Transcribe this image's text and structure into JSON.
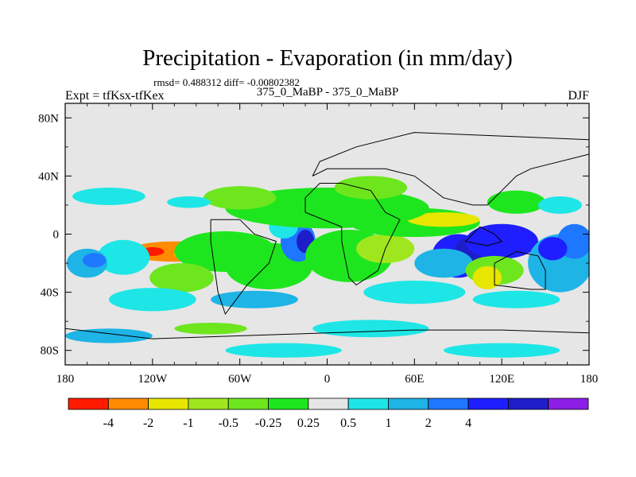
{
  "chart_data": {
    "type": "heatmap",
    "title": "Precipitation - Evaporation (in mm/day)",
    "stats_line": "rmsd= 0.488312 diff= -0.00802382",
    "experiment_label": "Expt = tfKsx-tfKex",
    "comparison_label": "375_0_MaBP - 375_0_MaBP",
    "season_label": "DJF",
    "x_axis": {
      "range": [
        -180,
        180
      ],
      "ticks": [
        {
          "value": -180,
          "label": "180"
        },
        {
          "value": -120,
          "label": "120W"
        },
        {
          "value": -60,
          "label": "60W"
        },
        {
          "value": 0,
          "label": "0"
        },
        {
          "value": 60,
          "label": "60E"
        },
        {
          "value": 120,
          "label": "120E"
        },
        {
          "value": 180,
          "label": "180"
        }
      ]
    },
    "y_axis": {
      "range": [
        -90,
        90
      ],
      "ticks": [
        {
          "value": 80,
          "label": "80N"
        },
        {
          "value": 40,
          "label": "40N"
        },
        {
          "value": 0,
          "label": "0"
        },
        {
          "value": -40,
          "label": "40S"
        },
        {
          "value": -80,
          "label": "80S"
        }
      ]
    },
    "colorbar": {
      "colors": [
        "#ff1a00",
        "#ff8c00",
        "#e6e600",
        "#a0e61e",
        "#6ee61e",
        "#1ee61e",
        "#e6e6e6",
        "#1ee6e6",
        "#1eb4e6",
        "#1e78ff",
        "#1e1eff",
        "#1e1ec8",
        "#8c1ee6"
      ],
      "labels": [
        "-4",
        "-2",
        "-1",
        "-0.5",
        "-0.25",
        "0.25",
        "0.5",
        "1",
        "2",
        "4"
      ]
    },
    "field_blobs": [
      {
        "lon": -105,
        "lat": -12,
        "rlon": 32,
        "rlat": 7,
        "level": 1
      },
      {
        "lon": -120,
        "lat": -12,
        "rlon": 8,
        "rlat": 3,
        "level": 0
      },
      {
        "lon": -85,
        "lat": -14,
        "rlon": 20,
        "rlat": 5,
        "level": 2
      },
      {
        "lon": -140,
        "lat": -16,
        "rlon": 18,
        "rlat": 12,
        "level": 7
      },
      {
        "lon": -165,
        "lat": -20,
        "rlon": 14,
        "rlat": 10,
        "level": 8
      },
      {
        "lon": -160,
        "lat": -18,
        "rlon": 8,
        "rlat": 5,
        "level": 9
      },
      {
        "lon": -70,
        "lat": -12,
        "rlon": 35,
        "rlat": 14,
        "level": 5
      },
      {
        "lon": -40,
        "lat": -22,
        "rlon": 30,
        "rlat": 16,
        "level": 5
      },
      {
        "lon": -100,
        "lat": -30,
        "rlon": 22,
        "rlat": 10,
        "level": 4
      },
      {
        "lon": -20,
        "lat": -5,
        "rlon": 12,
        "rlat": 14,
        "level": 9
      },
      {
        "lon": -15,
        "lat": -5,
        "rlon": 6,
        "rlat": 8,
        "level": 11
      },
      {
        "lon": -30,
        "lat": 5,
        "rlon": 10,
        "rlat": 8,
        "level": 7
      },
      {
        "lon": 15,
        "lat": -15,
        "rlon": 30,
        "rlat": 18,
        "level": 5
      },
      {
        "lon": 40,
        "lat": -10,
        "rlon": 20,
        "rlat": 10,
        "level": 3
      },
      {
        "lon": 60,
        "lat": 8,
        "rlon": 45,
        "rlat": 10,
        "level": 5
      },
      {
        "lon": 80,
        "lat": 10,
        "rlon": 25,
        "rlat": 5,
        "level": 2
      },
      {
        "lon": 0,
        "lat": 18,
        "rlon": 70,
        "rlat": 14,
        "level": 5
      },
      {
        "lon": -60,
        "lat": 25,
        "rlon": 25,
        "rlat": 8,
        "level": 4
      },
      {
        "lon": 30,
        "lat": 32,
        "rlon": 25,
        "rlat": 8,
        "level": 4
      },
      {
        "lon": -150,
        "lat": 26,
        "rlon": 25,
        "rlat": 6,
        "level": 7
      },
      {
        "lon": -95,
        "lat": 22,
        "rlon": 15,
        "rlat": 4,
        "level": 7
      },
      {
        "lon": 90,
        "lat": -15,
        "rlon": 18,
        "rlat": 15,
        "level": 10
      },
      {
        "lon": 100,
        "lat": -10,
        "rlon": 12,
        "rlat": 8,
        "level": 11
      },
      {
        "lon": 80,
        "lat": -20,
        "rlon": 20,
        "rlat": 10,
        "level": 8
      },
      {
        "lon": 120,
        "lat": -5,
        "rlon": 25,
        "rlat": 12,
        "level": 10
      },
      {
        "lon": 115,
        "lat": -25,
        "rlon": 20,
        "rlat": 10,
        "level": 4
      },
      {
        "lon": 110,
        "lat": -30,
        "rlon": 10,
        "rlat": 8,
        "level": 2
      },
      {
        "lon": 160,
        "lat": -20,
        "rlon": 22,
        "rlat": 20,
        "level": 8
      },
      {
        "lon": 170,
        "lat": -5,
        "rlon": 12,
        "rlat": 12,
        "level": 9
      },
      {
        "lon": 155,
        "lat": -10,
        "rlon": 10,
        "rlat": 8,
        "level": 10
      },
      {
        "lon": 60,
        "lat": -40,
        "rlon": 35,
        "rlat": 8,
        "level": 7
      },
      {
        "lon": -50,
        "lat": -45,
        "rlon": 30,
        "rlat": 6,
        "level": 8
      },
      {
        "lon": -120,
        "lat": -45,
        "rlon": 30,
        "rlat": 8,
        "level": 7
      },
      {
        "lon": 130,
        "lat": -45,
        "rlon": 30,
        "rlat": 6,
        "level": 7
      },
      {
        "lon": -150,
        "lat": -70,
        "rlon": 30,
        "rlat": 5,
        "level": 8
      },
      {
        "lon": -80,
        "lat": -65,
        "rlon": 25,
        "rlat": 4,
        "level": 4
      },
      {
        "lon": 30,
        "lat": -65,
        "rlon": 40,
        "rlat": 6,
        "level": 7
      },
      {
        "lon": 120,
        "lat": -80,
        "rlon": 40,
        "rlat": 5,
        "level": 7
      },
      {
        "lon": -30,
        "lat": -80,
        "rlon": 40,
        "rlat": 5,
        "level": 7
      },
      {
        "lon": 130,
        "lat": 22,
        "rlon": 20,
        "rlat": 8,
        "level": 5
      },
      {
        "lon": 160,
        "lat": 20,
        "rlon": 15,
        "rlat": 6,
        "level": 7
      }
    ],
    "coastlines": [
      [
        [
          -80,
          10
        ],
        [
          -60,
          10
        ],
        [
          -50,
          0
        ],
        [
          -35,
          -5
        ],
        [
          -40,
          -20
        ],
        [
          -55,
          -35
        ],
        [
          -70,
          -55
        ],
        [
          -75,
          -40
        ],
        [
          -80,
          -5
        ],
        [
          -80,
          10
        ]
      ],
      [
        [
          -15,
          15
        ],
        [
          10,
          5
        ],
        [
          10,
          -5
        ],
        [
          15,
          -30
        ],
        [
          20,
          -35
        ],
        [
          35,
          -25
        ],
        [
          40,
          -10
        ],
        [
          50,
          10
        ],
        [
          40,
          15
        ],
        [
          30,
          30
        ],
        [
          10,
          35
        ],
        [
          -5,
          35
        ],
        [
          -15,
          25
        ],
        [
          -15,
          15
        ]
      ],
      [
        [
          -10,
          40
        ],
        [
          0,
          45
        ],
        [
          20,
          45
        ],
        [
          40,
          45
        ],
        [
          60,
          40
        ],
        [
          80,
          25
        ],
        [
          100,
          20
        ],
        [
          110,
          20
        ],
        [
          120,
          30
        ],
        [
          130,
          40
        ],
        [
          140,
          45
        ],
        [
          180,
          55
        ],
        [
          180,
          65
        ],
        [
          60,
          70
        ],
        [
          20,
          60
        ],
        [
          -5,
          50
        ],
        [
          -10,
          40
        ]
      ],
      [
        [
          115,
          -20
        ],
        [
          130,
          -12
        ],
        [
          145,
          -15
        ],
        [
          150,
          -25
        ],
        [
          150,
          -38
        ],
        [
          140,
          -38
        ],
        [
          115,
          -35
        ],
        [
          115,
          -20
        ]
      ],
      [
        [
          -180,
          -65
        ],
        [
          -120,
          -72
        ],
        [
          -60,
          -70
        ],
        [
          0,
          -68
        ],
        [
          60,
          -66
        ],
        [
          120,
          -66
        ],
        [
          180,
          -68
        ]
      ],
      [
        [
          95,
          -5
        ],
        [
          105,
          5
        ],
        [
          115,
          0
        ],
        [
          120,
          -5
        ],
        [
          110,
          -8
        ],
        [
          95,
          -5
        ]
      ]
    ]
  }
}
